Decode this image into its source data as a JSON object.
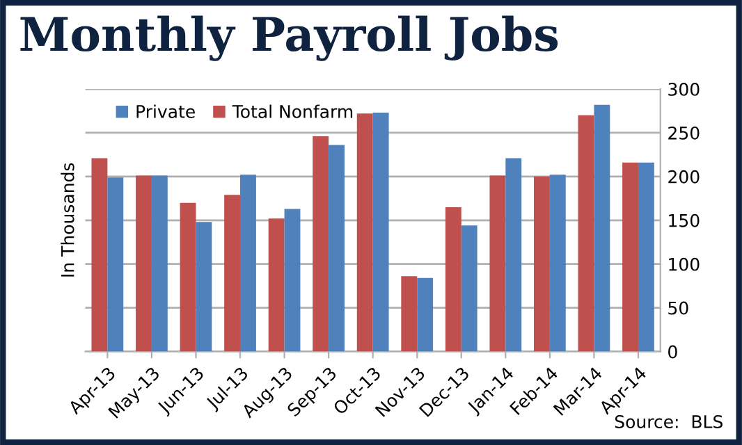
{
  "chart_data": {
    "type": "bar",
    "title": "Monthly Payroll Jobs",
    "ylabel": "In Thousands",
    "categories": [
      "Apr-13",
      "May-13",
      "Jun-13",
      "Jul-13",
      "Aug-13",
      "Sep-13",
      "Oct-13",
      "Nov-13",
      "Dec-13",
      "Jan-14",
      "Feb-14",
      "Mar-14",
      "Apr-14"
    ],
    "series": [
      {
        "name": "Total Nonfarm",
        "color": "#c0504d",
        "values": [
          221,
          201,
          170,
          179,
          152,
          246,
          272,
          86,
          165,
          201,
          200,
          270,
          216
        ]
      },
      {
        "name": "Private",
        "color": "#4f81bd",
        "values": [
          199,
          201,
          148,
          202,
          163,
          236,
          273,
          84,
          144,
          221,
          202,
          282,
          216
        ]
      }
    ],
    "ylim": [
      0,
      300
    ],
    "yticks": [
      0,
      50,
      100,
      150,
      200,
      250,
      300
    ],
    "grid": "y",
    "legend": "top",
    "annotations": [
      "Source:  BLS"
    ]
  }
}
